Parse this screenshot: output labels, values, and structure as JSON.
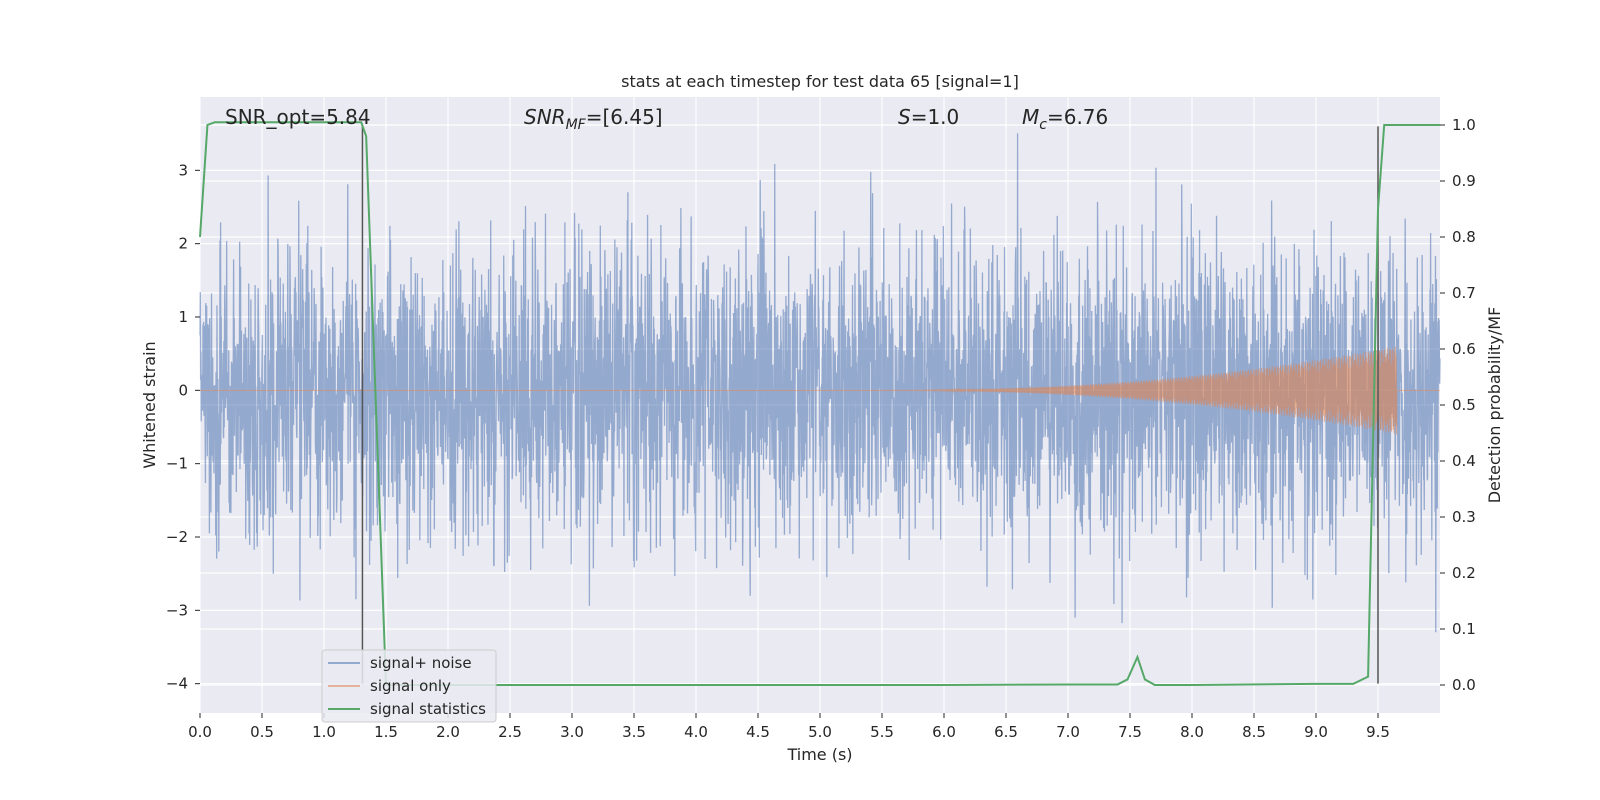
{
  "chart_data": {
    "type": "line",
    "title": "stats at each timestep for test data 65 [signal=1]",
    "xlabel": "Time (s)",
    "ylabel": "Whitened strain",
    "y2label": "Detection probability/MF",
    "xlim": [
      0.0,
      10.0
    ],
    "ylim": [
      -4.4,
      4.0
    ],
    "y2lim": [
      -0.05,
      1.05
    ],
    "xticks": [
      "0.0",
      "0.5",
      "1.0",
      "1.5",
      "2.0",
      "2.5",
      "3.0",
      "3.5",
      "4.0",
      "4.5",
      "5.0",
      "5.5",
      "6.0",
      "6.5",
      "7.0",
      "7.5",
      "8.0",
      "8.5",
      "9.0",
      "9.5"
    ],
    "yticks": [
      "3",
      "2",
      "1",
      "0",
      "−1",
      "−2",
      "−3",
      "−4"
    ],
    "y2ticks": [
      "1.0",
      "0.9",
      "0.8",
      "0.7",
      "0.6",
      "0.5",
      "0.4",
      "0.3",
      "0.2",
      "0.1",
      "0.0"
    ],
    "grid": true,
    "legend_position": "lower-left",
    "annotations": [
      {
        "label": "SNR_opt=5.84"
      },
      {
        "label": "SNR",
        "sub": "MF",
        "value": "=[6.45]"
      },
      {
        "label": "S",
        "value": "=1.0"
      },
      {
        "label": "M",
        "sub": "c",
        "value": "=6.76"
      }
    ],
    "vertical_lines": [
      1.31,
      9.5
    ],
    "series": [
      {
        "name": "signal+ noise",
        "color": "#4c72b0",
        "axis": "left",
        "noise_std": 1.0,
        "peak_range": [
          -4.1,
          3.6
        ]
      },
      {
        "name": "signal only",
        "color": "#dd8452",
        "axis": "left",
        "chirp_start": 5.5,
        "merger_time": 9.65,
        "peak_amplitude": 0.6
      },
      {
        "name": "signal statistics",
        "color": "#55a868",
        "axis": "right",
        "x": [
          0.0,
          0.06,
          0.12,
          0.2,
          1.0,
          1.3,
          1.34,
          1.5,
          2.0,
          3.0,
          4.0,
          5.0,
          6.0,
          7.0,
          7.4,
          7.48,
          7.56,
          7.62,
          7.7,
          8.0,
          9.0,
          9.3,
          9.42,
          9.5,
          9.55,
          9.6,
          10.0
        ],
        "y": [
          0.8,
          1.0,
          1.005,
          1.005,
          1.005,
          1.005,
          0.98,
          0.0,
          0.0,
          0.0,
          0.0,
          0.0,
          0.0,
          0.001,
          0.001,
          0.01,
          0.05,
          0.01,
          0.0,
          0.0,
          0.002,
          0.002,
          0.015,
          0.85,
          1.0,
          1.0,
          1.0
        ]
      }
    ]
  }
}
